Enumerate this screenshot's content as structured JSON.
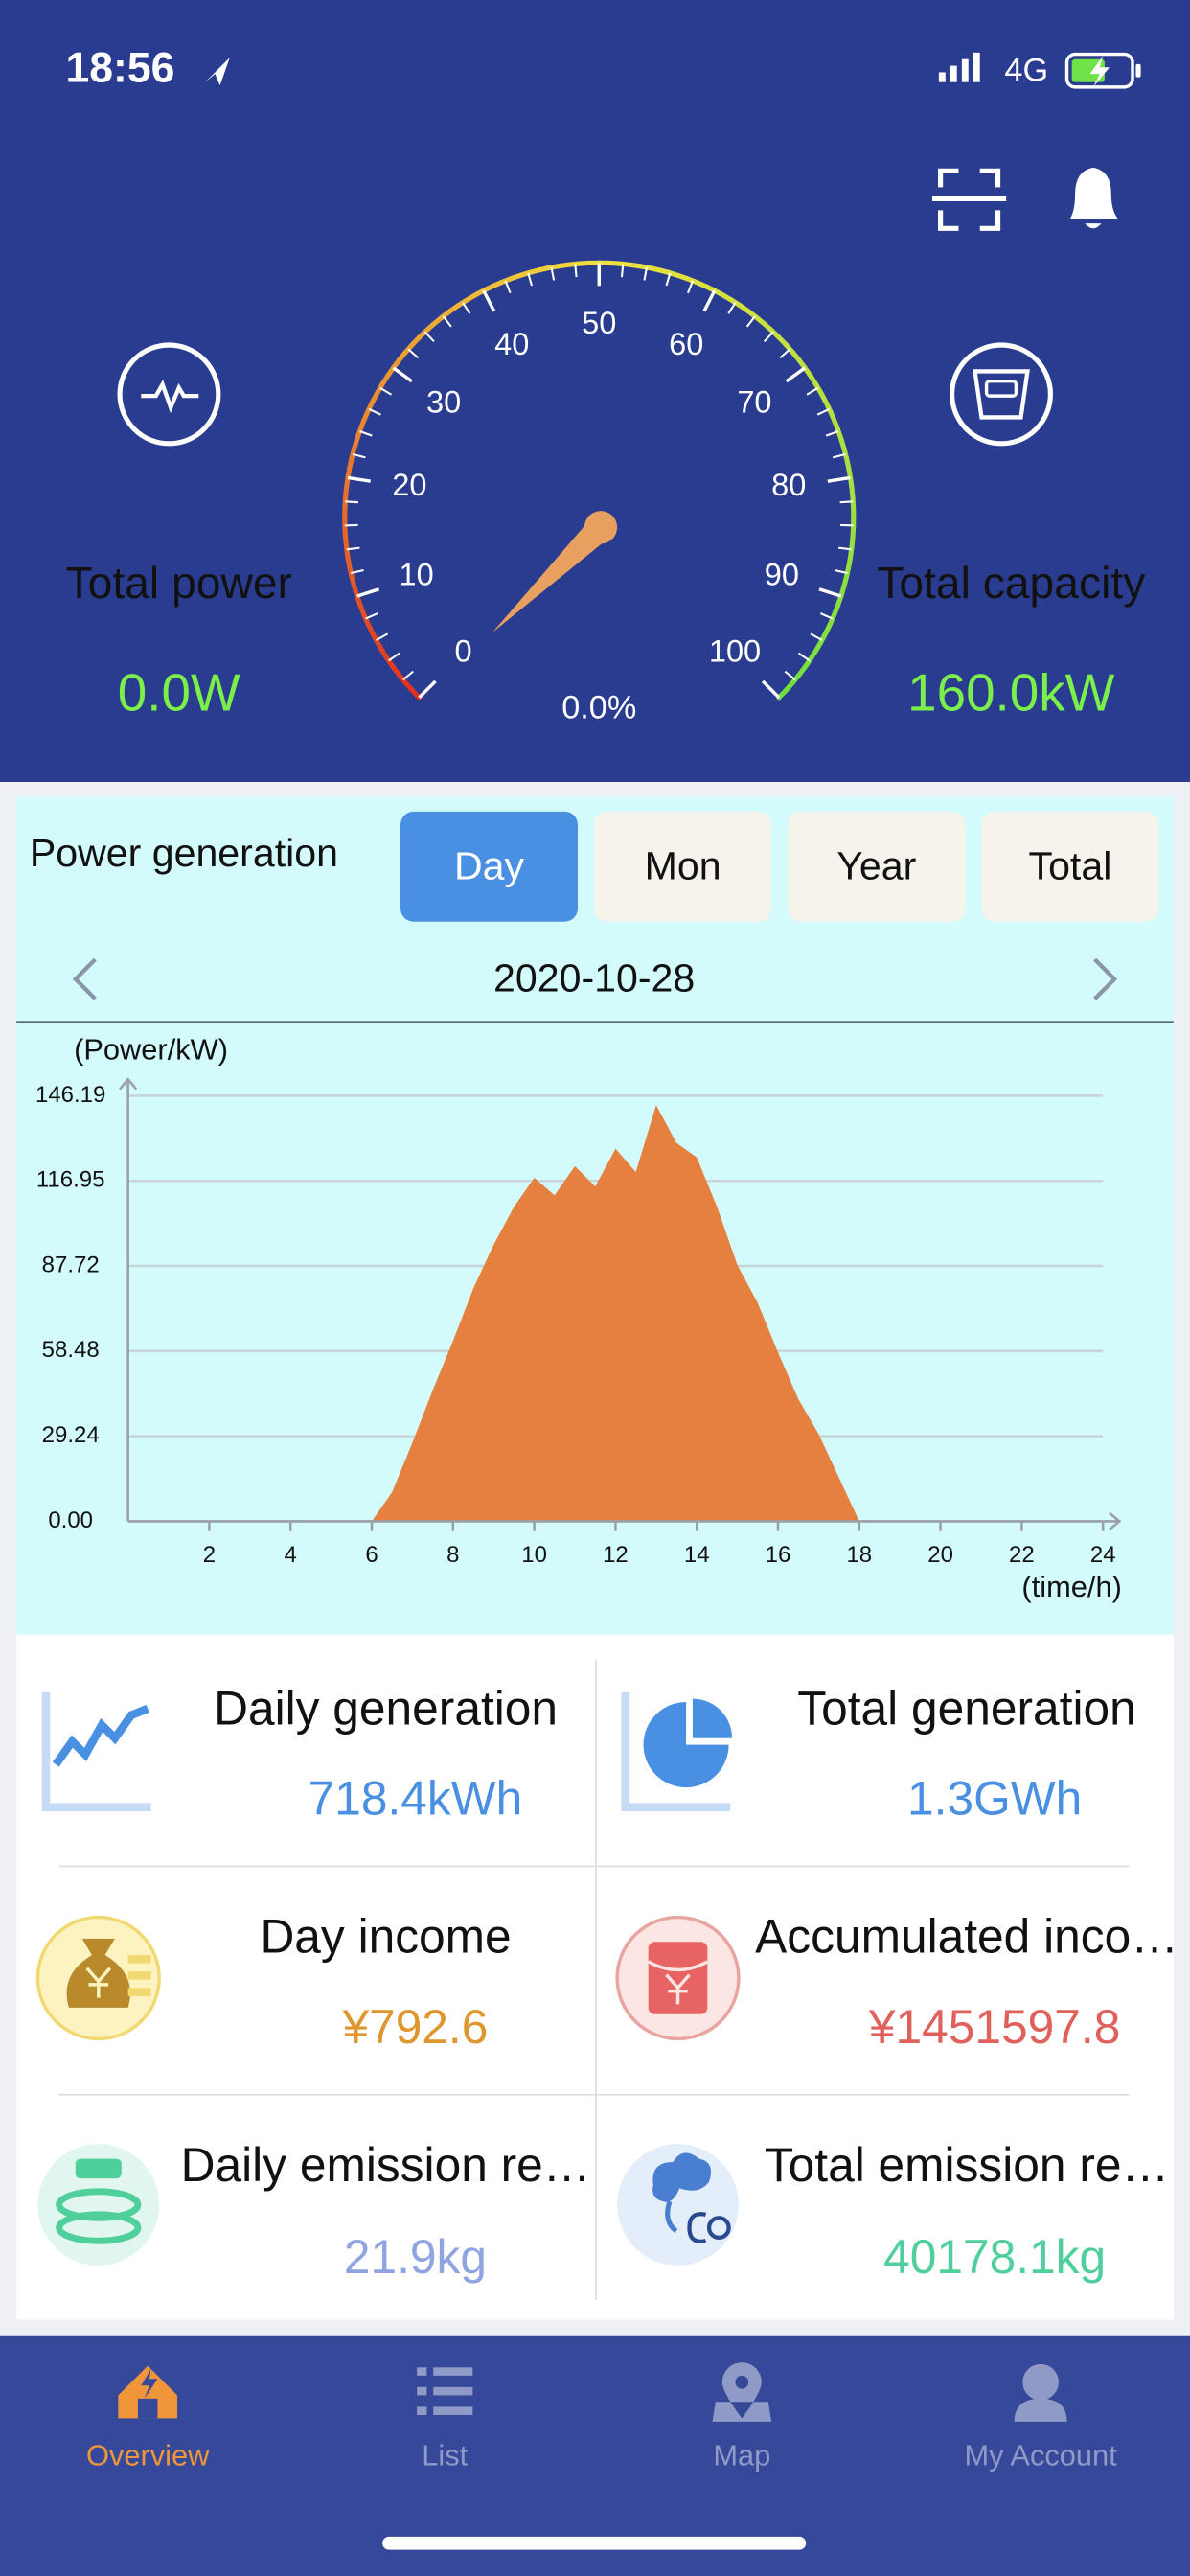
{
  "status": {
    "time": "18:56",
    "network": "4G"
  },
  "gauge": {
    "labels": [
      "0",
      "10",
      "20",
      "30",
      "40",
      "50",
      "60",
      "70",
      "80",
      "90",
      "100"
    ],
    "value": "0.0%"
  },
  "stats": [
    {
      "label": "Total power",
      "value": "0.0W"
    },
    {
      "label": "Total capacity",
      "value": "160.0kW"
    }
  ],
  "chart_section": {
    "title": "Power generation",
    "tabs": [
      "Day",
      "Mon",
      "Year",
      "Total"
    ],
    "date": "2020-10-28"
  },
  "chart_data": {
    "type": "area",
    "y_label": "(Power/kW)",
    "x_label": "(time/h)",
    "x": [
      6,
      6.5,
      7,
      7.5,
      8,
      8.5,
      9,
      9.5,
      10,
      10.5,
      11,
      11.5,
      12,
      12.5,
      13,
      13.5,
      14,
      14.5,
      15,
      15.5,
      16,
      16.5,
      17,
      17.5,
      18
    ],
    "values": [
      0,
      10,
      27,
      45,
      62,
      80,
      95,
      108,
      118,
      112,
      122,
      115,
      128,
      120,
      143,
      130,
      125,
      108,
      88,
      75,
      58,
      42,
      30,
      15,
      0
    ],
    "color": "#e5803f",
    "xlim": [
      0,
      24
    ],
    "xticks": [
      2,
      4,
      6,
      8,
      10,
      12,
      14,
      16,
      18,
      20,
      22,
      24
    ],
    "ylim": [
      0,
      146.19
    ],
    "yticks": [
      {
        "value": 0,
        "label": "0.00"
      },
      29.24,
      58.48,
      87.72,
      116.95,
      146.19
    ],
    "grid": true
  },
  "cards": [
    {
      "label": "Daily generation",
      "value": "718.4kWh"
    },
    {
      "label": "Total generation",
      "value": "1.3GWh"
    },
    {
      "label": "Day income",
      "value": "¥792.6"
    },
    {
      "label": "Accumulated inco…",
      "value": "¥1451597.8"
    },
    {
      "label": "Daily emission re…",
      "value": "21.9kg"
    },
    {
      "label": "Total emission re…",
      "value": "40178.1kg"
    }
  ],
  "nav": [
    "Overview",
    "List",
    "Map",
    "My Account"
  ]
}
